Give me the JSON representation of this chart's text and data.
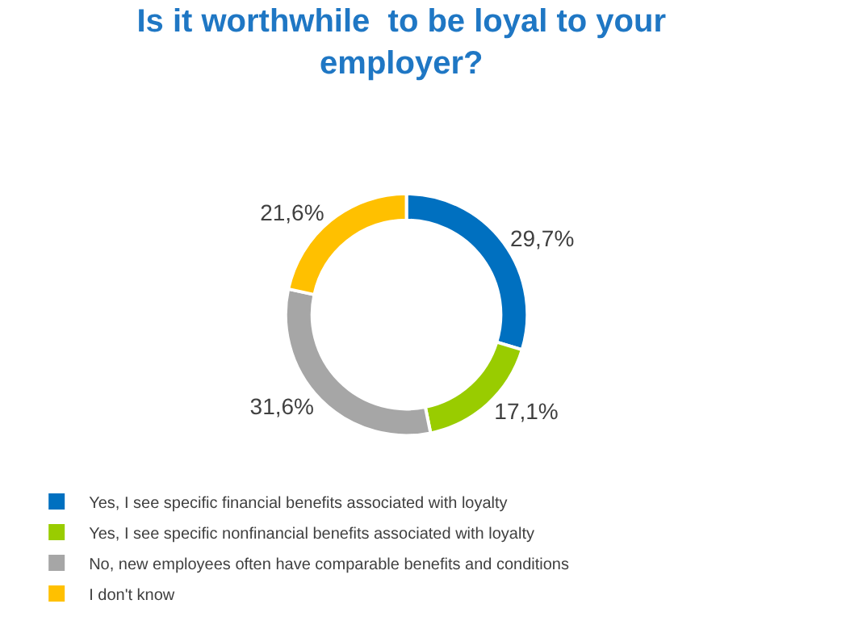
{
  "chart_data": {
    "type": "donut",
    "title": "Is it worthwhile  to be loyal to your\nemployer?",
    "categories": [
      "Yes, I see specific financial benefits associated with loyalty",
      "Yes, I see specific nonfinancial benefits associated with loyalty",
      "No, new employees often have comparable benefits and conditions",
      "I don't know"
    ],
    "values": [
      29.7,
      17.1,
      31.6,
      21.6
    ],
    "value_labels": [
      "29,7%",
      "17,1%",
      "31,6%",
      "21,6%"
    ],
    "colors": [
      "#0070c0",
      "#99cc00",
      "#a6a6a6",
      "#ffc000"
    ],
    "legend": "bottom"
  }
}
